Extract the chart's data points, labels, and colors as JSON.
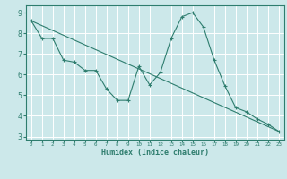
{
  "xlabel": "Humidex (Indice chaleur)",
  "line1_x": [
    0,
    1,
    2,
    3,
    4,
    5,
    6,
    7,
    8,
    9,
    10,
    11,
    12,
    13,
    14,
    15,
    16,
    17,
    18,
    19,
    20,
    21,
    22,
    23
  ],
  "line1_y": [
    8.6,
    7.75,
    7.75,
    6.7,
    6.6,
    6.2,
    6.2,
    5.3,
    4.75,
    4.75,
    6.4,
    5.5,
    6.1,
    7.75,
    8.8,
    9.0,
    8.3,
    6.7,
    5.45,
    4.4,
    4.2,
    3.85,
    3.6,
    3.25
  ],
  "line2_x": [
    0,
    23
  ],
  "line2_y": [
    8.6,
    3.25
  ],
  "color": "#2e7d6e",
  "bg_color": "#cce8ea",
  "grid_color": "#ffffff",
  "xlim": [
    -0.5,
    23.5
  ],
  "ylim": [
    2.85,
    9.35
  ],
  "yticks": [
    3,
    4,
    5,
    6,
    7,
    8,
    9
  ],
  "xticks": [
    0,
    1,
    2,
    3,
    4,
    5,
    6,
    7,
    8,
    9,
    10,
    11,
    12,
    13,
    14,
    15,
    16,
    17,
    18,
    19,
    20,
    21,
    22,
    23
  ]
}
